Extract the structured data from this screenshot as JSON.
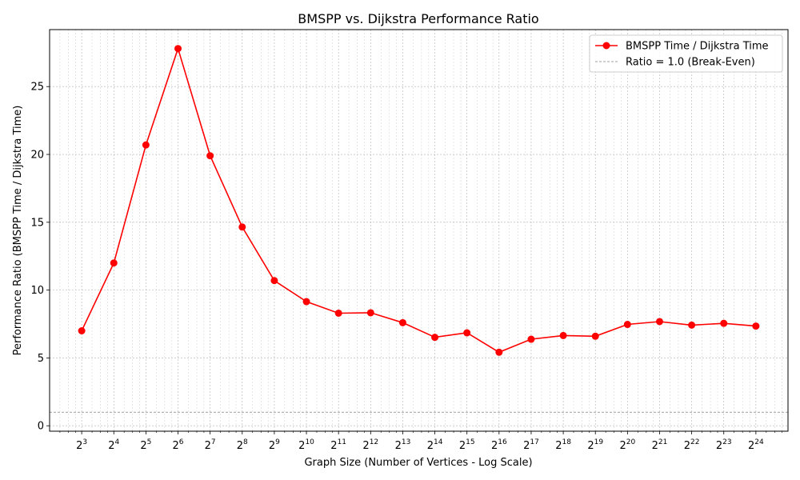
{
  "chart_data": {
    "type": "line",
    "title": "BMSPP vs. Dijkstra Performance Ratio",
    "xlabel": "Graph Size (Number of Vertices - Log Scale)",
    "ylabel": "Performance Ratio (BMSPP Time / Dijkstra Time)",
    "x_scale": "log2",
    "x_tick_base": "2",
    "x_tick_exponents": [
      3,
      4,
      5,
      6,
      7,
      8,
      9,
      10,
      11,
      12,
      13,
      14,
      15,
      16,
      17,
      18,
      19,
      20,
      21,
      22,
      23,
      24
    ],
    "x": [
      8,
      16,
      32,
      64,
      128,
      256,
      512,
      1024,
      2048,
      4096,
      8192,
      16384,
      32768,
      65536,
      131072,
      262144,
      524288,
      1048576,
      2097152,
      4194304,
      8388608,
      16777216
    ],
    "xlim": [
      4,
      33554432
    ],
    "ylim": [
      -0.4,
      29.2
    ],
    "y_ticks": [
      0,
      5,
      10,
      15,
      20,
      25
    ],
    "grid": true,
    "legend_position": "top-right",
    "series": [
      {
        "name": "BMSPP Time / Dijkstra Time",
        "color": "#ff0000",
        "marker": "circle",
        "values": [
          7.0,
          12.0,
          20.7,
          27.8,
          19.9,
          14.65,
          10.7,
          9.15,
          8.3,
          8.33,
          7.6,
          6.52,
          6.85,
          5.42,
          6.38,
          6.65,
          6.6,
          7.47,
          7.68,
          7.42,
          7.55,
          7.35
        ]
      }
    ],
    "reference_line": {
      "label": "Ratio = 1.0 (Break-Even)",
      "y": 1.0,
      "color": "#808080",
      "style": "dashed"
    }
  }
}
